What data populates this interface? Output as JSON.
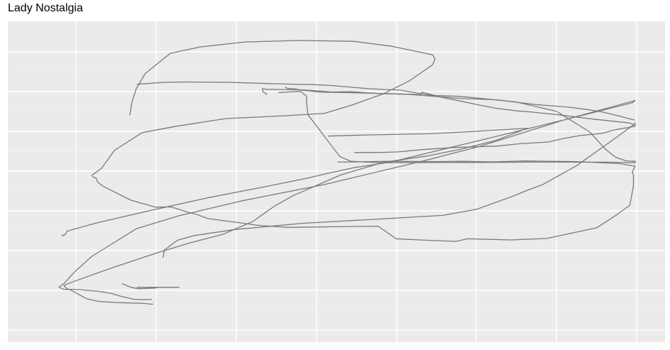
{
  "chart_data": {
    "type": "line",
    "title": "Lady Nostalgia",
    "xlabel": "",
    "ylabel": "",
    "axis_ticks_shown": false,
    "grid": true,
    "xlim": [
      0,
      1
    ],
    "ylim": [
      0,
      1
    ],
    "series": [
      {
        "values": [
          [
            0.486,
            0.656
          ],
          [
            0.55,
            0.66
          ],
          [
            0.655,
            0.664
          ],
          [
            0.73,
            0.672
          ],
          [
            0.82,
            0.683
          ],
          [
            0.765,
            0.64
          ],
          [
            0.705,
            0.61
          ],
          [
            0.652,
            0.588
          ],
          [
            0.578,
            0.566
          ],
          [
            0.508,
            0.524
          ],
          [
            0.47,
            0.49
          ],
          [
            0.427,
            0.452
          ],
          [
            0.396,
            0.416
          ],
          [
            0.36,
            0.364
          ],
          [
            0.311,
            0.321
          ],
          [
            0.25,
            0.288
          ],
          [
            0.2,
            0.257
          ],
          [
            0.125,
            0.206
          ],
          [
            0.066,
            0.163
          ],
          [
            0.044,
            0.146
          ],
          [
            0.048,
            0.136
          ],
          [
            0.058,
            0.127
          ],
          [
            0.074,
            0.109
          ],
          [
            0.082,
            0.1
          ],
          [
            0.102,
            0.091
          ],
          [
            0.133,
            0.087
          ],
          [
            0.178,
            0.084
          ],
          [
            0.192,
            0.081
          ],
          [
            0.193,
            0.083
          ]
        ]
      },
      {
        "values": [
          [
            0.199,
            0.137
          ],
          [
            0.17,
            0.134
          ],
          [
            0.156,
            0.139
          ],
          [
            0.141,
            0.152
          ]
        ]
      },
      {
        "values": [
          [
            0.237,
            0.139
          ],
          [
            0.166,
            0.139
          ]
        ]
      },
      {
        "values": [
          [
            0.191,
            0.098
          ],
          [
            0.179,
            0.097
          ],
          [
            0.162,
            0.098
          ],
          [
            0.14,
            0.108
          ],
          [
            0.124,
            0.118
          ],
          [
            0.1,
            0.126
          ],
          [
            0.082,
            0.129
          ],
          [
            0.072,
            0.131
          ],
          [
            0.06,
            0.132
          ],
          [
            0.044,
            0.132
          ],
          [
            0.036,
            0.139
          ],
          [
            0.036,
            0.14
          ],
          [
            0.045,
            0.154
          ],
          [
            0.061,
            0.19
          ],
          [
            0.09,
            0.244
          ],
          [
            0.13,
            0.295
          ],
          [
            0.165,
            0.339
          ],
          [
            0.235,
            0.383
          ],
          [
            0.34,
            0.434
          ],
          [
            0.479,
            0.49
          ],
          [
            0.645,
            0.571
          ],
          [
            0.74,
            0.621
          ],
          [
            0.88,
            0.711
          ],
          [
            1.0,
            0.778
          ],
          [
            0.995,
            0.77
          ],
          [
            0.88,
            0.711
          ],
          [
            0.59,
            0.567
          ],
          [
            0.532,
            0.549
          ],
          [
            0.493,
            0.532
          ],
          [
            0.453,
            0.513
          ],
          [
            0.376,
            0.481
          ],
          [
            0.284,
            0.445
          ],
          [
            0.177,
            0.396
          ],
          [
            0.1,
            0.36
          ],
          [
            0.049,
            0.331
          ],
          [
            0.046,
            0.319
          ],
          [
            0.042,
            0.315
          ],
          [
            0.041,
            0.32
          ]
        ]
      },
      {
        "values": [
          [
            0.21,
            0.24
          ],
          [
            0.212,
            0.266
          ],
          [
            0.234,
            0.3
          ],
          [
            0.262,
            0.316
          ],
          [
            0.331,
            0.337
          ],
          [
            0.444,
            0.358
          ],
          [
            0.56,
            0.371
          ],
          [
            0.678,
            0.385
          ],
          [
            0.735,
            0.406
          ],
          [
            0.792,
            0.448
          ],
          [
            0.82,
            0.471
          ],
          [
            0.845,
            0.49
          ],
          [
            0.902,
            0.555
          ],
          [
            0.962,
            0.642
          ],
          [
            1.0,
            0.699
          ],
          [
            1.0,
            0.703
          ]
        ]
      },
      {
        "values": [
          [
            0.999,
            0.711
          ],
          [
            0.972,
            0.725
          ],
          [
            0.946,
            0.738
          ],
          [
            0.919,
            0.747
          ],
          [
            0.888,
            0.755
          ],
          [
            0.832,
            0.764
          ],
          [
            0.769,
            0.78
          ],
          [
            0.707,
            0.785
          ],
          [
            0.658,
            0.793
          ],
          [
            0.62,
            0.799
          ],
          [
            0.576,
            0.801
          ],
          [
            0.524,
            0.808
          ],
          [
            0.492,
            0.807
          ],
          [
            0.445,
            0.814
          ],
          [
            0.382,
            0.816
          ],
          [
            0.376,
            0.818
          ],
          [
            0.377,
            0.808
          ],
          [
            0.384,
            0.798
          ]
        ]
      },
      {
        "values": [
          [
            0.403,
            0.805
          ],
          [
            0.44,
            0.809
          ],
          [
            0.448,
            0.796
          ],
          [
            0.45,
            0.792
          ],
          [
            0.45,
            0.775
          ],
          [
            0.452,
            0.73
          ],
          [
            0.474,
            0.671
          ],
          [
            0.496,
            0.612
          ],
          [
            0.506,
            0.586
          ],
          [
            0.524,
            0.57
          ],
          [
            0.575,
            0.565
          ],
          [
            0.672,
            0.566
          ],
          [
            0.746,
            0.566
          ],
          [
            0.82,
            0.567
          ],
          [
            0.908,
            0.567
          ],
          [
            0.95,
            0.567
          ],
          [
            1.0,
            0.565
          ],
          [
            1.0,
            0.57
          ],
          [
            0.985,
            0.571
          ],
          [
            0.967,
            0.584
          ],
          [
            0.951,
            0.61
          ],
          [
            0.924,
            0.67
          ],
          [
            0.868,
            0.741
          ],
          [
            0.8,
            0.773
          ],
          [
            0.706,
            0.792
          ],
          [
            0.665,
            0.795
          ],
          [
            0.643,
            0.806
          ],
          [
            0.641,
            0.798
          ],
          [
            0.513,
            0.805
          ],
          [
            0.475,
            0.806
          ],
          [
            0.441,
            0.813
          ],
          [
            0.43,
            0.818
          ],
          [
            0.418,
            0.819
          ],
          [
            0.414,
            0.824
          ]
        ]
      },
      {
        "values": [
          [
            0.502,
            0.567
          ],
          [
            0.59,
            0.57
          ],
          [
            0.67,
            0.569
          ],
          [
            0.71,
            0.57
          ],
          [
            0.76,
            0.568
          ],
          [
            0.816,
            0.571
          ],
          [
            0.902,
            0.569
          ],
          [
            0.975,
            0.562
          ],
          [
            1.0,
            0.553
          ],
          [
            0.995,
            0.534
          ],
          [
            0.997,
            0.522
          ],
          [
            0.997,
            0.486
          ],
          [
            0.991,
            0.42
          ],
          [
            0.969,
            0.387
          ],
          [
            0.936,
            0.343
          ],
          [
            0.852,
            0.306
          ],
          [
            0.792,
            0.301
          ],
          [
            0.72,
            0.305
          ],
          [
            0.7,
            0.296
          ],
          [
            0.64,
            0.301
          ],
          [
            0.6,
            0.305
          ],
          [
            0.57,
            0.348
          ],
          [
            0.528,
            0.347
          ],
          [
            0.42,
            0.344
          ],
          [
            0.368,
            0.351
          ],
          [
            0.348,
            0.357
          ],
          [
            0.285,
            0.374
          ],
          [
            0.265,
            0.389
          ],
          [
            0.25,
            0.397
          ],
          [
            0.223,
            0.414
          ],
          [
            0.197,
            0.413
          ],
          [
            0.156,
            0.437
          ],
          [
            0.11,
            0.484
          ],
          [
            0.1,
            0.5
          ],
          [
            0.098,
            0.512
          ],
          [
            0.092,
            0.517
          ],
          [
            0.093,
            0.519
          ]
        ]
      },
      {
        "values": [
          [
            0.09,
            0.521
          ],
          [
            0.107,
            0.546
          ],
          [
            0.129,
            0.608
          ],
          [
            0.175,
            0.668
          ],
          [
            0.233,
            0.69
          ],
          [
            0.315,
            0.716
          ],
          [
            0.418,
            0.726
          ],
          [
            0.48,
            0.734
          ],
          [
            0.524,
            0.761
          ],
          [
            0.578,
            0.8
          ],
          [
            0.622,
            0.845
          ],
          [
            0.661,
            0.9
          ],
          [
            0.665,
            0.92
          ],
          [
            0.661,
            0.934
          ],
          [
            0.593,
            0.963
          ],
          [
            0.529,
            0.98
          ],
          [
            0.436,
            0.983
          ],
          [
            0.347,
            0.978
          ],
          [
            0.272,
            0.961
          ],
          [
            0.222,
            0.939
          ],
          [
            0.18,
            0.87
          ],
          [
            0.165,
            0.818
          ],
          [
            0.158,
            0.773
          ],
          [
            0.155,
            0.735
          ],
          [
            0.154,
            0.727
          ]
        ]
      },
      {
        "values": [
          [
            0.166,
            0.833
          ],
          [
            0.213,
            0.84
          ],
          [
            0.244,
            0.841
          ],
          [
            0.317,
            0.84
          ],
          [
            0.398,
            0.835
          ],
          [
            0.46,
            0.832
          ],
          [
            0.493,
            0.829
          ],
          [
            0.555,
            0.818
          ],
          [
            0.607,
            0.813
          ],
          [
            0.628,
            0.806
          ],
          [
            0.66,
            0.795
          ],
          [
            0.695,
            0.781
          ],
          [
            0.74,
            0.762
          ],
          [
            0.768,
            0.751
          ],
          [
            0.803,
            0.742
          ],
          [
            0.828,
            0.738
          ],
          [
            0.866,
            0.73
          ],
          [
            0.93,
            0.714
          ],
          [
            0.99,
            0.701
          ],
          [
            1.0,
            0.694
          ],
          [
            1.0,
            0.69
          ],
          [
            0.99,
            0.686
          ],
          [
            0.967,
            0.678
          ],
          [
            0.943,
            0.665
          ],
          [
            0.908,
            0.658
          ],
          [
            0.878,
            0.647
          ],
          [
            0.855,
            0.636
          ],
          [
            0.808,
            0.63
          ],
          [
            0.77,
            0.622
          ],
          [
            0.697,
            0.617
          ],
          [
            0.65,
            0.611
          ],
          [
            0.602,
            0.602
          ],
          [
            0.568,
            0.6
          ],
          [
            0.53,
            0.6
          ]
        ]
      }
    ]
  }
}
